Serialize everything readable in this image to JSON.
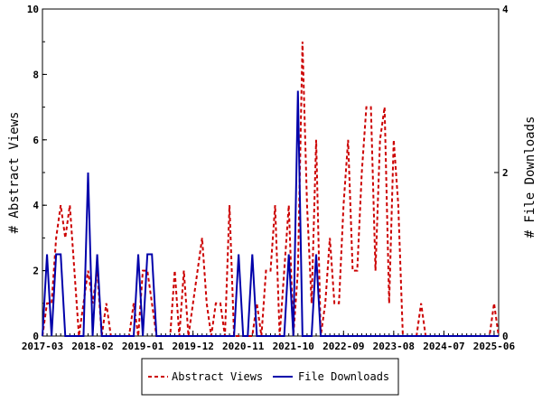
{
  "chart_data": {
    "type": "line",
    "title": "",
    "x_ticks": [
      "2017-03",
      "2018-02",
      "2019-01",
      "2019-12",
      "2020-11",
      "2021-10",
      "2022-09",
      "2023-08",
      "2024-07",
      "2025-06"
    ],
    "ylabel_left": "# Abstract Views",
    "ylabel_right": "# File Downloads",
    "ylim_left": [
      0,
      10
    ],
    "ylim_right": [
      0,
      4
    ],
    "yticks_left": [
      "0",
      "2",
      "4",
      "6",
      "8",
      "10"
    ],
    "yticks_right": [
      "0",
      "2",
      "4"
    ],
    "grid": false,
    "legend_position": "bottom-center",
    "series": [
      {
        "name": "Abstract Views",
        "axis": "left",
        "color": "#cc0000",
        "style": "dashed",
        "points": [
          [
            "2017-03",
            0
          ],
          [
            "2017-04",
            1
          ],
          [
            "2017-05",
            1
          ],
          [
            "2017-06",
            3
          ],
          [
            "2017-07",
            4
          ],
          [
            "2017-08",
            3
          ],
          [
            "2017-09",
            4
          ],
          [
            "2017-10",
            2
          ],
          [
            "2017-11",
            0
          ],
          [
            "2017-12",
            1
          ],
          [
            "2018-01",
            2
          ],
          [
            "2018-02",
            1
          ],
          [
            "2018-03",
            2
          ],
          [
            "2018-04",
            0
          ],
          [
            "2018-05",
            1
          ],
          [
            "2018-06",
            0
          ],
          [
            "2018-07",
            0
          ],
          [
            "2018-08",
            0
          ],
          [
            "2018-09",
            0
          ],
          [
            "2018-10",
            0
          ],
          [
            "2018-11",
            1
          ],
          [
            "2018-12",
            0
          ],
          [
            "2019-01",
            2
          ],
          [
            "2019-02",
            2
          ],
          [
            "2019-03",
            1
          ],
          [
            "2019-04",
            0
          ],
          [
            "2019-05",
            0
          ],
          [
            "2019-06",
            0
          ],
          [
            "2019-07",
            0
          ],
          [
            "2019-08",
            2
          ],
          [
            "2019-09",
            0
          ],
          [
            "2019-10",
            2
          ],
          [
            "2019-11",
            0
          ],
          [
            "2019-12",
            1
          ],
          [
            "2020-01",
            2
          ],
          [
            "2020-02",
            3
          ],
          [
            "2020-03",
            1
          ],
          [
            "2020-04",
            0
          ],
          [
            "2020-05",
            1
          ],
          [
            "2020-06",
            1
          ],
          [
            "2020-07",
            0
          ],
          [
            "2020-08",
            4
          ],
          [
            "2020-09",
            0
          ],
          [
            "2020-10",
            0
          ],
          [
            "2020-11",
            0
          ],
          [
            "2020-12",
            0
          ],
          [
            "2021-01",
            0
          ],
          [
            "2021-02",
            1
          ],
          [
            "2021-03",
            0
          ],
          [
            "2021-04",
            2
          ],
          [
            "2021-05",
            2
          ],
          [
            "2021-06",
            4
          ],
          [
            "2021-07",
            0
          ],
          [
            "2021-08",
            2
          ],
          [
            "2021-09",
            4
          ],
          [
            "2021-10",
            0
          ],
          [
            "2021-11",
            2
          ],
          [
            "2021-12",
            9
          ],
          [
            "2022-01",
            4
          ],
          [
            "2022-02",
            1
          ],
          [
            "2022-03",
            6
          ],
          [
            "2022-04",
            0
          ],
          [
            "2022-05",
            1
          ],
          [
            "2022-06",
            3
          ],
          [
            "2022-07",
            1
          ],
          [
            "2022-08",
            1
          ],
          [
            "2022-09",
            4
          ],
          [
            "2022-10",
            6
          ],
          [
            "2022-11",
            2
          ],
          [
            "2022-12",
            2
          ],
          [
            "2023-01",
            5
          ],
          [
            "2023-02",
            7
          ],
          [
            "2023-03",
            7
          ],
          [
            "2023-04",
            2
          ],
          [
            "2023-05",
            6
          ],
          [
            "2023-06",
            7
          ],
          [
            "2023-07",
            1
          ],
          [
            "2023-08",
            6
          ],
          [
            "2023-09",
            4
          ],
          [
            "2023-10",
            0
          ],
          [
            "2023-11",
            0
          ],
          [
            "2023-12",
            0
          ],
          [
            "2024-01",
            0
          ],
          [
            "2024-02",
            1
          ],
          [
            "2024-03",
            0
          ],
          [
            "2024-04",
            0
          ],
          [
            "2024-05",
            0
          ],
          [
            "2024-06",
            0
          ],
          [
            "2024-07",
            0
          ],
          [
            "2024-08",
            0
          ],
          [
            "2024-09",
            0
          ],
          [
            "2024-10",
            0
          ],
          [
            "2024-11",
            0
          ],
          [
            "2024-12",
            0
          ],
          [
            "2025-01",
            0
          ],
          [
            "2025-02",
            0
          ],
          [
            "2025-03",
            0
          ],
          [
            "2025-04",
            0
          ],
          [
            "2025-05",
            0
          ],
          [
            "2025-06",
            1
          ],
          [
            "2025-07",
            0
          ]
        ]
      },
      {
        "name": "File Downloads",
        "axis": "right",
        "color": "#0000aa",
        "style": "solid",
        "points": [
          [
            "2017-03",
            0
          ],
          [
            "2017-04",
            1
          ],
          [
            "2017-05",
            0
          ],
          [
            "2017-06",
            1
          ],
          [
            "2017-07",
            1
          ],
          [
            "2017-08",
            0
          ],
          [
            "2017-09",
            0
          ],
          [
            "2017-10",
            0
          ],
          [
            "2017-11",
            0
          ],
          [
            "2017-12",
            0
          ],
          [
            "2018-01",
            2
          ],
          [
            "2018-02",
            0
          ],
          [
            "2018-03",
            1
          ],
          [
            "2018-04",
            0
          ],
          [
            "2018-05",
            0
          ],
          [
            "2018-06",
            0
          ],
          [
            "2018-07",
            0
          ],
          [
            "2018-08",
            0
          ],
          [
            "2018-09",
            0
          ],
          [
            "2018-10",
            0
          ],
          [
            "2018-11",
            0
          ],
          [
            "2018-12",
            1
          ],
          [
            "2019-01",
            0
          ],
          [
            "2019-02",
            1
          ],
          [
            "2019-03",
            1
          ],
          [
            "2019-04",
            0
          ],
          [
            "2019-05",
            0
          ],
          [
            "2019-06",
            0
          ],
          [
            "2019-07",
            0
          ],
          [
            "2019-08",
            0
          ],
          [
            "2019-09",
            0
          ],
          [
            "2019-10",
            0
          ],
          [
            "2019-11",
            0
          ],
          [
            "2019-12",
            0
          ],
          [
            "2020-01",
            0
          ],
          [
            "2020-02",
            0
          ],
          [
            "2020-03",
            0
          ],
          [
            "2020-04",
            0
          ],
          [
            "2020-05",
            0
          ],
          [
            "2020-06",
            0
          ],
          [
            "2020-07",
            0
          ],
          [
            "2020-08",
            0
          ],
          [
            "2020-09",
            0
          ],
          [
            "2020-10",
            1
          ],
          [
            "2020-11",
            0
          ],
          [
            "2020-12",
            0
          ],
          [
            "2021-01",
            1
          ],
          [
            "2021-02",
            0
          ],
          [
            "2021-03",
            0
          ],
          [
            "2021-04",
            0
          ],
          [
            "2021-05",
            0
          ],
          [
            "2021-06",
            0
          ],
          [
            "2021-07",
            0
          ],
          [
            "2021-08",
            0
          ],
          [
            "2021-09",
            1
          ],
          [
            "2021-10",
            0
          ],
          [
            "2021-11",
            3
          ],
          [
            "2021-12",
            0
          ],
          [
            "2022-01",
            0
          ],
          [
            "2022-02",
            0
          ],
          [
            "2022-03",
            1
          ],
          [
            "2022-04",
            0
          ],
          [
            "2022-05",
            0
          ],
          [
            "2022-06",
            0
          ],
          [
            "2022-07",
            0
          ],
          [
            "2022-08",
            0
          ],
          [
            "2022-09",
            0
          ],
          [
            "2022-10",
            0
          ],
          [
            "2022-11",
            0
          ],
          [
            "2022-12",
            0
          ],
          [
            "2023-01",
            0
          ],
          [
            "2023-02",
            0
          ],
          [
            "2023-03",
            0
          ],
          [
            "2023-04",
            0
          ],
          [
            "2023-05",
            0
          ],
          [
            "2023-06",
            0
          ],
          [
            "2023-07",
            0
          ],
          [
            "2023-08",
            0
          ],
          [
            "2023-09",
            0
          ],
          [
            "2023-10",
            0
          ],
          [
            "2023-11",
            0
          ],
          [
            "2023-12",
            0
          ],
          [
            "2024-01",
            0
          ],
          [
            "2024-02",
            0
          ],
          [
            "2024-03",
            0
          ],
          [
            "2024-04",
            0
          ],
          [
            "2024-05",
            0
          ],
          [
            "2024-06",
            0
          ],
          [
            "2024-07",
            0
          ],
          [
            "2024-08",
            0
          ],
          [
            "2024-09",
            0
          ],
          [
            "2024-10",
            0
          ],
          [
            "2024-11",
            0
          ],
          [
            "2024-12",
            0
          ],
          [
            "2025-01",
            0
          ],
          [
            "2025-02",
            0
          ],
          [
            "2025-03",
            0
          ],
          [
            "2025-04",
            0
          ],
          [
            "2025-05",
            0
          ],
          [
            "2025-06",
            0
          ],
          [
            "2025-07",
            0
          ]
        ]
      }
    ]
  }
}
